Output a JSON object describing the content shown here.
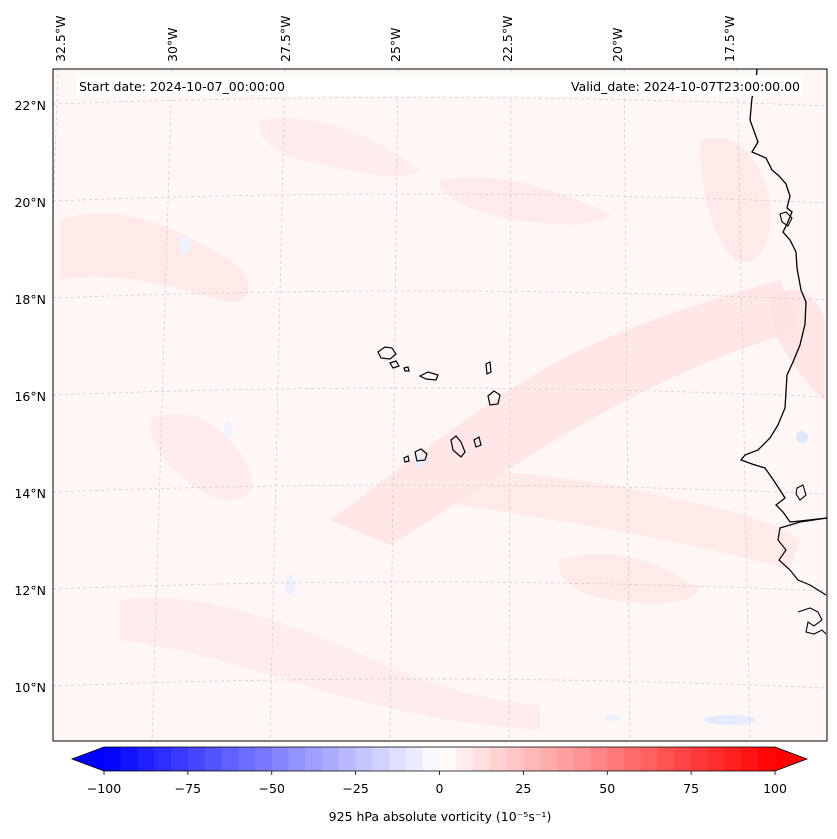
{
  "header": {
    "start_date": "Start date: 2024-10-07_00:00:00",
    "valid_date": "Valid_date: 2024-10-07T23:00:00.00"
  },
  "map": {
    "lon_labels": [
      "32.5°W",
      "30°W",
      "27.5°W",
      "25°W",
      "22.5°W",
      "20°W",
      "17.5°W"
    ],
    "lat_labels": [
      "22°N",
      "20°N",
      "18°N",
      "16°N",
      "14°N",
      "12°N",
      "10°N"
    ],
    "field_colors": {
      "background": "#fff6f6",
      "positive_light": "#ffe3e3",
      "negative_light": "#eef3ff"
    }
  },
  "colorbar": {
    "title": "925 hPa absolute vorticity (10⁻⁵s⁻¹)",
    "ticks": [
      "−100",
      "−75",
      "−50",
      "−25",
      "0",
      "25",
      "50",
      "75",
      "100"
    ],
    "min": -100,
    "max": 100,
    "low_color": "#0000ff",
    "mid_color": "#ffffff",
    "high_color": "#ff0000"
  }
}
